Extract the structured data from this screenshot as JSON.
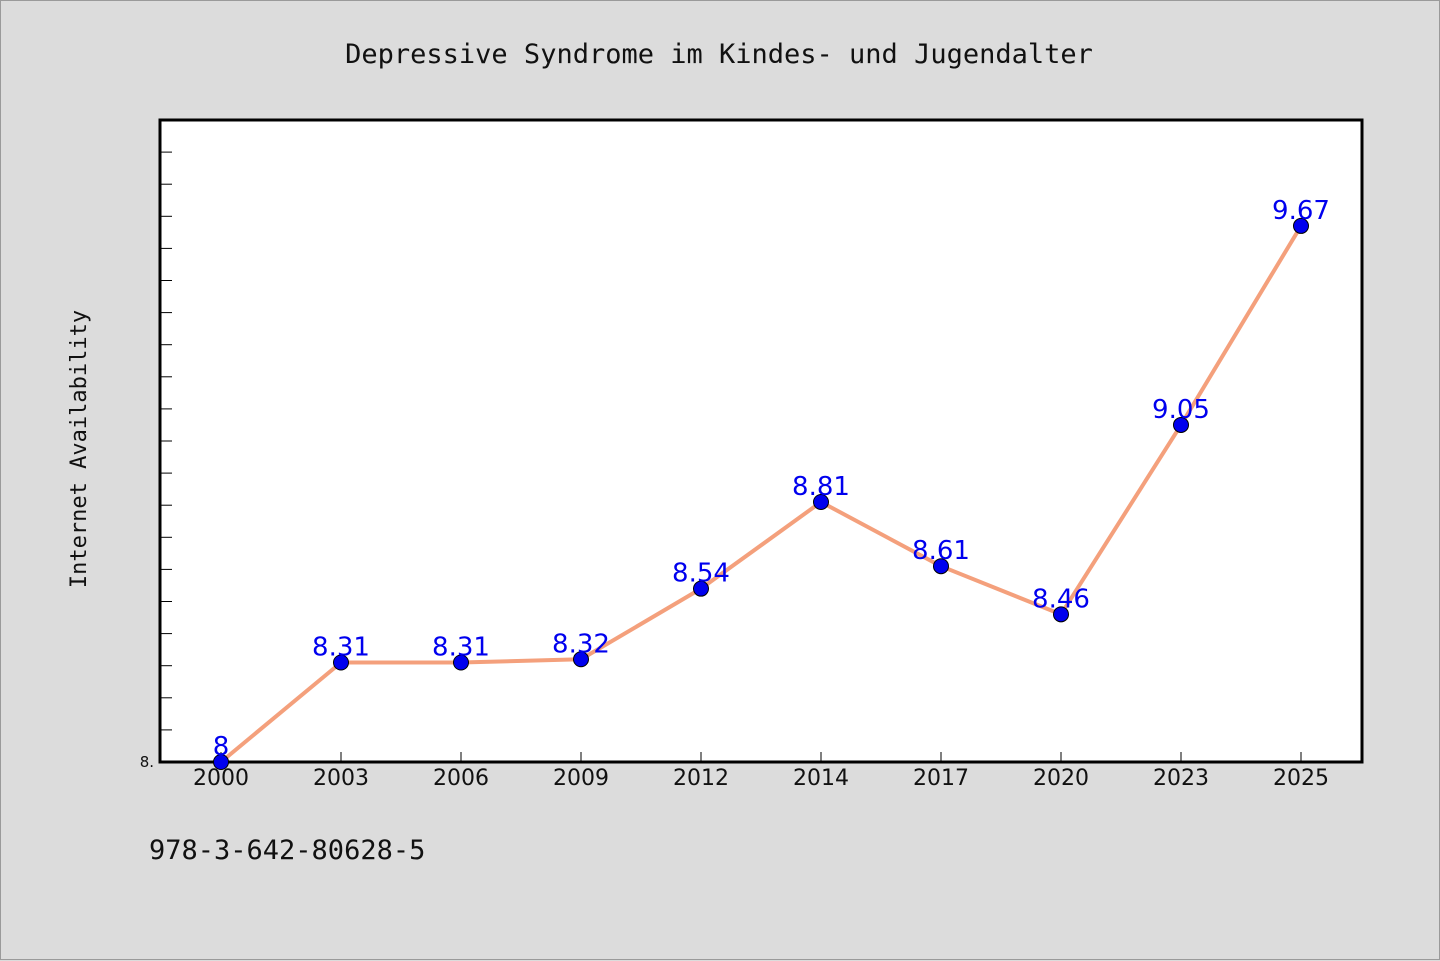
{
  "chart_data": {
    "type": "line",
    "title": "Depressive Syndrome im Kindes- und Jugendalter",
    "ylabel": "Internet Availability",
    "categories": [
      "2000",
      "2003",
      "2006",
      "2009",
      "2012",
      "2014",
      "2017",
      "2020",
      "2023",
      "2025"
    ],
    "series": [
      {
        "values": [
          8,
          8.31,
          8.31,
          8.32,
          8.54,
          8.81,
          8.61,
          8.46,
          9.05,
          9.67
        ],
        "labels": [
          "8",
          "8.31",
          "8.31",
          "8.32",
          "8.54",
          "8.81",
          "8.61",
          "8.46",
          "9.05",
          "9.67"
        ],
        "line_color": "#f4a07c",
        "marker_color": "#0000ee"
      }
    ],
    "ylim": [
      8,
      10
    ],
    "ytick_labels": [
      {
        "value": 8,
        "label": "8."
      }
    ],
    "grid": false,
    "legend": "none"
  },
  "footer": {
    "isbn": "978-3-642-80628-5"
  }
}
